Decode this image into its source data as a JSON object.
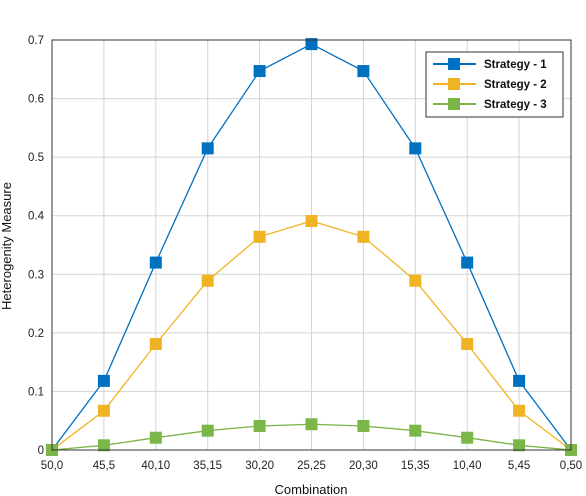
{
  "chart_data": {
    "type": "line",
    "title": "",
    "xlabel": "Combination",
    "ylabel": "Heterogenity Measure",
    "categories": [
      "50,0",
      "45,5",
      "40,10",
      "35,15",
      "30,20",
      "25,25",
      "20,30",
      "15,35",
      "10,40",
      "5,45",
      "0,50"
    ],
    "ylim": [
      0,
      0.7
    ],
    "yticks": [
      0,
      0.1,
      0.2,
      0.3,
      0.4,
      0.5,
      0.6,
      0.7
    ],
    "ytick_labels": [
      "0",
      "0.1",
      "0.2",
      "0.3",
      "0.4",
      "0.5",
      "0.6",
      "0.7"
    ],
    "grid": true,
    "legend_position": "top-right",
    "series": [
      {
        "name": "Strategy - 1",
        "color": "#0070C0",
        "values": [
          0,
          0.118,
          0.32,
          0.515,
          0.647,
          0.693,
          0.647,
          0.515,
          0.32,
          0.118,
          0
        ]
      },
      {
        "name": "Strategy - 2",
        "color": "#F0B323",
        "values": [
          0,
          0.067,
          0.181,
          0.289,
          0.364,
          0.391,
          0.364,
          0.289,
          0.181,
          0.067,
          0
        ]
      },
      {
        "name": "Strategy - 3",
        "color": "#7AB648",
        "values": [
          0,
          0.008,
          0.021,
          0.033,
          0.041,
          0.044,
          0.041,
          0.033,
          0.021,
          0.008,
          0
        ]
      }
    ]
  }
}
